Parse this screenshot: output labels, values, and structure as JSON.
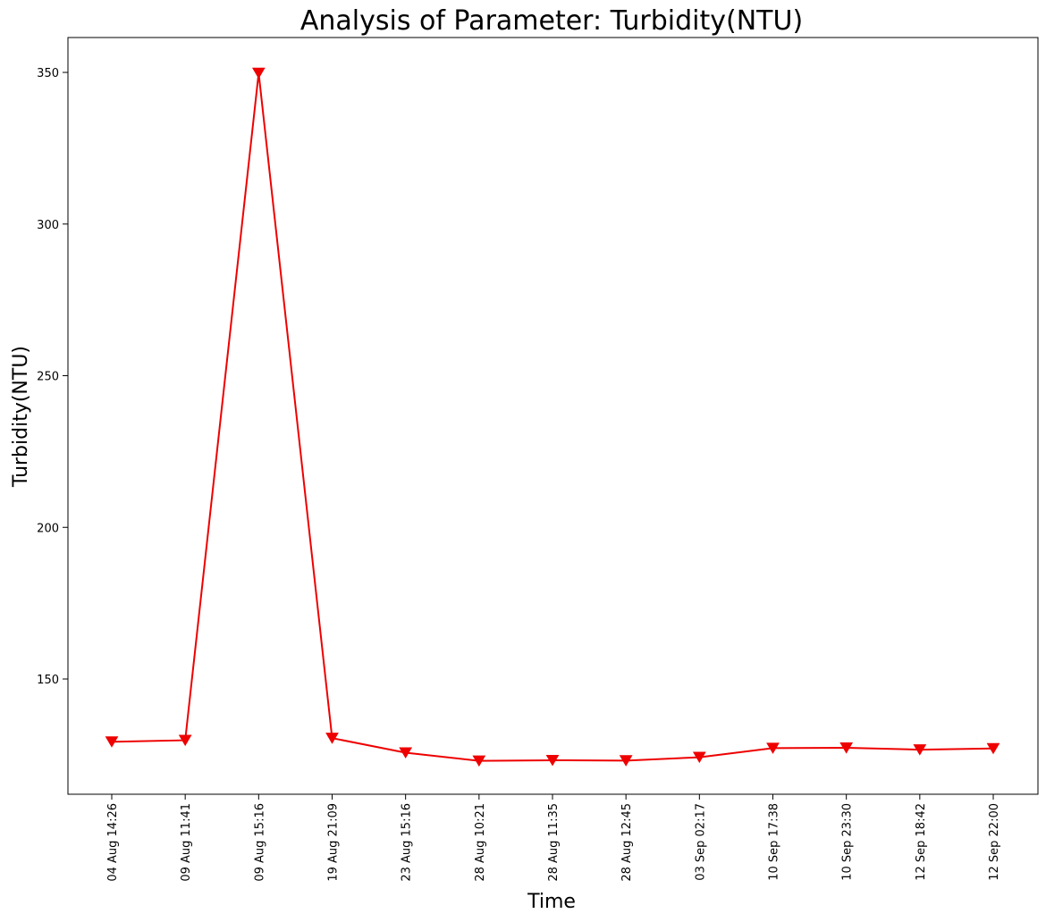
{
  "chart_data": {
    "type": "line",
    "title": "Analysis of Parameter: Turbidity(NTU)",
    "xlabel": "Time",
    "ylabel": "Turbidity(NTU)",
    "ylim": [
      112,
      361.5
    ],
    "yticks": [
      150,
      200,
      250,
      300,
      350
    ],
    "grid": false,
    "marker": "triangle-down",
    "color": "#ee0000",
    "categories": [
      "04 Aug 14:26",
      "09 Aug 11:41",
      "09 Aug 15:16",
      "19 Aug 21:09",
      "23 Aug 15:16",
      "28 Aug 10:21",
      "28 Aug 11:35",
      "28 Aug 12:45",
      "03 Sep 02:17",
      "10 Sep 17:38",
      "10 Sep 23:30",
      "12 Sep 18:42",
      "12 Sep 22:00"
    ],
    "values": [
      129.3,
      129.8,
      349.8,
      130.5,
      125.7,
      123.0,
      123.2,
      123.1,
      124.2,
      127.2,
      127.3,
      126.7,
      127.1
    ]
  }
}
